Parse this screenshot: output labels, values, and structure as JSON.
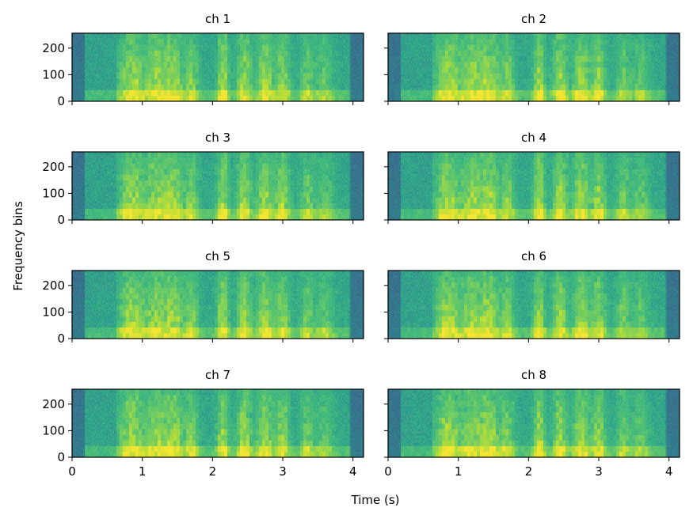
{
  "figure": {
    "shared_xlabel": "Time (s)",
    "shared_ylabel": "Frequency bins"
  },
  "chart_data": {
    "type": "heatmap",
    "subtype": "spectrogram grid (4 rows x 2 columns, shared axes)",
    "x_range": [
      0,
      4.15
    ],
    "y_range": [
      0,
      256
    ],
    "x_ticks": [
      0,
      1,
      2,
      3,
      4
    ],
    "y_ticks": [
      0,
      100,
      200
    ],
    "colormap": "viridis",
    "grid": false,
    "panels": [
      {
        "title": "ch 1"
      },
      {
        "title": "ch 2"
      },
      {
        "title": "ch 3"
      },
      {
        "title": "ch 4"
      },
      {
        "title": "ch 5"
      },
      {
        "title": "ch 6"
      },
      {
        "title": "ch 7"
      },
      {
        "title": "ch 8"
      }
    ]
  }
}
